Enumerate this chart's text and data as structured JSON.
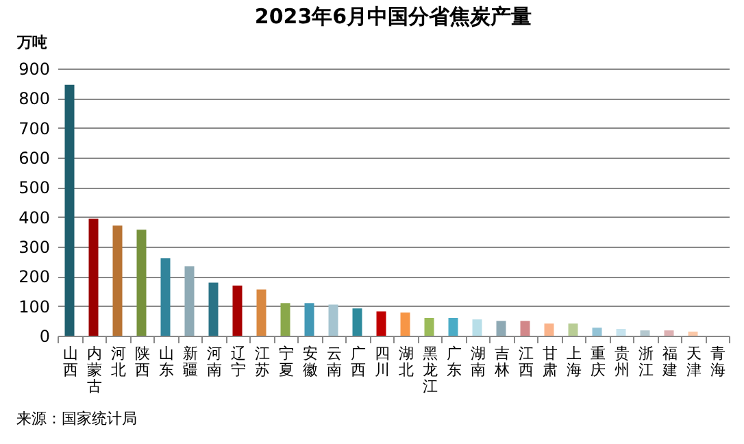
{
  "chart_data": {
    "type": "bar",
    "title": "2023年6月中国分省焦炭产量",
    "ylabel": "万吨",
    "categories": [
      "山西",
      "内蒙古",
      "河北",
      "陕西",
      "山东",
      "新疆",
      "河南",
      "辽宁",
      "江苏",
      "宁夏",
      "安徽",
      "云南",
      "广西",
      "四川",
      "湖北",
      "黑龙江",
      "广东",
      "湖南",
      "吉林",
      "江西",
      "甘肃",
      "上海",
      "重庆",
      "贵州",
      "浙江",
      "福建",
      "天津",
      "青海"
    ],
    "values": [
      845,
      394,
      371,
      357,
      261,
      234,
      179,
      169,
      156,
      110,
      110,
      105,
      92,
      82,
      78,
      60,
      60,
      55,
      50,
      50,
      41,
      41,
      27,
      23,
      18,
      18,
      14,
      0
    ],
    "colors": [
      "#1f5f6e",
      "#9b0000",
      "#b87333",
      "#77923c",
      "#31849b",
      "#8eaab5",
      "#2a7386",
      "#a80000",
      "#d98840",
      "#8aa84a",
      "#4298b5",
      "#a5c4d0",
      "#2d8a9c",
      "#c00000",
      "#f79646",
      "#9bbb59",
      "#4bacc6",
      "#b7dee8",
      "#8ea9b4",
      "#d28789",
      "#fab38a",
      "#b9cd95",
      "#93c3d6",
      "#c6e3ee",
      "#b4c8cf",
      "#ddb0b2",
      "#fbc8a8",
      "#dddddd"
    ],
    "ylim": [
      0,
      900
    ],
    "yticks": [
      0,
      100,
      200,
      300,
      400,
      500,
      600,
      700,
      800,
      900
    ],
    "grid": "y",
    "annotations": [
      "来源：国家统计局"
    ]
  }
}
